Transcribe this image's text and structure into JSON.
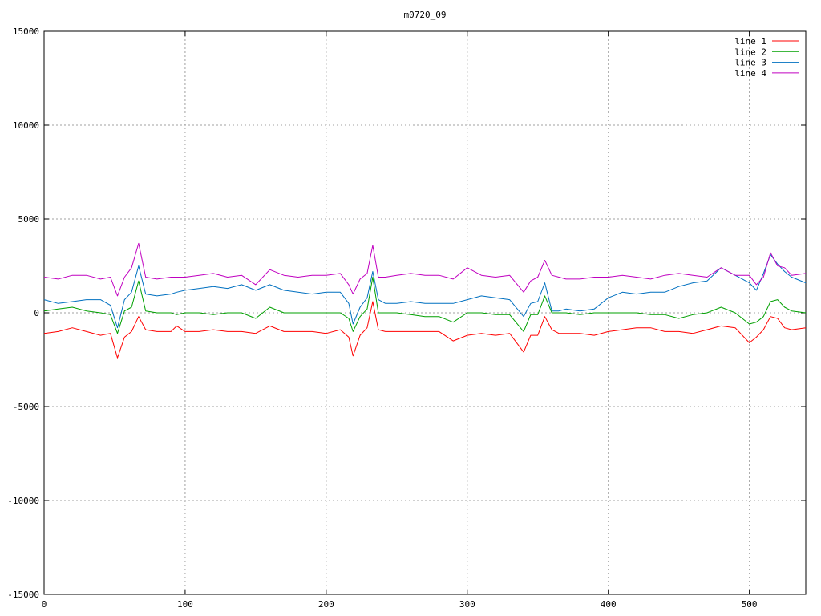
{
  "chart_data": {
    "type": "line",
    "title": "m0720_09",
    "xlabel": "",
    "ylabel": "",
    "xlim": [
      0,
      540
    ],
    "ylim": [
      -15000,
      15000
    ],
    "x_ticks": [
      0,
      100,
      200,
      300,
      400,
      500
    ],
    "y_ticks": [
      -15000,
      -10000,
      -5000,
      0,
      5000,
      10000,
      15000
    ],
    "grid": true,
    "legend_position": "top-right",
    "x": [
      0,
      10,
      20,
      30,
      40,
      47,
      52,
      57,
      62,
      67,
      72,
      80,
      90,
      94,
      100,
      110,
      120,
      130,
      140,
      150,
      160,
      170,
      180,
      190,
      200,
      210,
      216,
      219,
      224,
      229,
      233,
      237,
      242,
      250,
      260,
      270,
      280,
      290,
      300,
      310,
      320,
      330,
      340,
      345,
      350,
      355,
      360,
      365,
      370,
      380,
      390,
      400,
      410,
      420,
      430,
      440,
      450,
      460,
      470,
      480,
      490,
      500,
      505,
      510,
      515,
      520,
      525,
      530,
      540
    ],
    "series": [
      {
        "name": "line 1",
        "color": "#ff0000",
        "values": [
          -1100,
          -1000,
          -800,
          -1000,
          -1200,
          -1100,
          -2400,
          -1300,
          -1000,
          -200,
          -900,
          -1000,
          -1000,
          -700,
          -1000,
          -1000,
          -900,
          -1000,
          -1000,
          -1100,
          -700,
          -1000,
          -1000,
          -1000,
          -1100,
          -900,
          -1300,
          -2300,
          -1200,
          -800,
          600,
          -900,
          -1000,
          -1000,
          -1000,
          -1000,
          -1000,
          -1500,
          -1200,
          -1100,
          -1200,
          -1100,
          -2100,
          -1200,
          -1200,
          -200,
          -900,
          -1100,
          -1100,
          -1100,
          -1200,
          -1000,
          -900,
          -800,
          -800,
          -1000,
          -1000,
          -1100,
          -900,
          -700,
          -800,
          -1600,
          -1300,
          -900,
          -200,
          -300,
          -800,
          -900,
          -800
        ]
      },
      {
        "name": "line 2",
        "color": "#00a000",
        "values": [
          100,
          200,
          300,
          100,
          0,
          -100,
          -1100,
          100,
          300,
          1700,
          100,
          0,
          0,
          -100,
          0,
          0,
          -100,
          0,
          0,
          -300,
          300,
          0,
          0,
          0,
          0,
          0,
          -300,
          -1000,
          -200,
          200,
          1900,
          0,
          0,
          0,
          -100,
          -200,
          -200,
          -500,
          0,
          0,
          -100,
          -100,
          -1000,
          -100,
          -100,
          900,
          0,
          0,
          0,
          -100,
          0,
          0,
          0,
          0,
          -100,
          -100,
          -300,
          -100,
          0,
          300,
          0,
          -600,
          -500,
          -200,
          600,
          700,
          300,
          100,
          0
        ]
      },
      {
        "name": "line 3",
        "color": "#0070c0",
        "values": [
          700,
          500,
          600,
          700,
          700,
          400,
          -800,
          700,
          1100,
          2500,
          1000,
          900,
          1000,
          1100,
          1200,
          1300,
          1400,
          1300,
          1500,
          1200,
          1500,
          1200,
          1100,
          1000,
          1100,
          1100,
          500,
          -600,
          300,
          800,
          2200,
          700,
          500,
          500,
          600,
          500,
          500,
          500,
          700,
          900,
          800,
          700,
          -200,
          500,
          600,
          1600,
          100,
          100,
          200,
          100,
          200,
          800,
          1100,
          1000,
          1100,
          1100,
          1400,
          1600,
          1700,
          2400,
          2000,
          1600,
          1200,
          2100,
          3100,
          2600,
          2200,
          1900,
          1600
        ]
      },
      {
        "name": "line 4",
        "color": "#c000c0",
        "values": [
          1900,
          1800,
          2000,
          2000,
          1800,
          1900,
          900,
          1900,
          2400,
          3700,
          1900,
          1800,
          1900,
          1900,
          1900,
          2000,
          2100,
          1900,
          2000,
          1500,
          2300,
          2000,
          1900,
          2000,
          2000,
          2100,
          1500,
          1000,
          1800,
          2100,
          3600,
          1900,
          1900,
          2000,
          2100,
          2000,
          2000,
          1800,
          2400,
          2000,
          1900,
          2000,
          1100,
          1700,
          1900,
          2800,
          2000,
          1900,
          1800,
          1800,
          1900,
          1900,
          2000,
          1900,
          1800,
          2000,
          2100,
          2000,
          1900,
          2400,
          2000,
          2000,
          1500,
          1900,
          3200,
          2500,
          2400,
          2000,
          2100
        ]
      }
    ]
  }
}
